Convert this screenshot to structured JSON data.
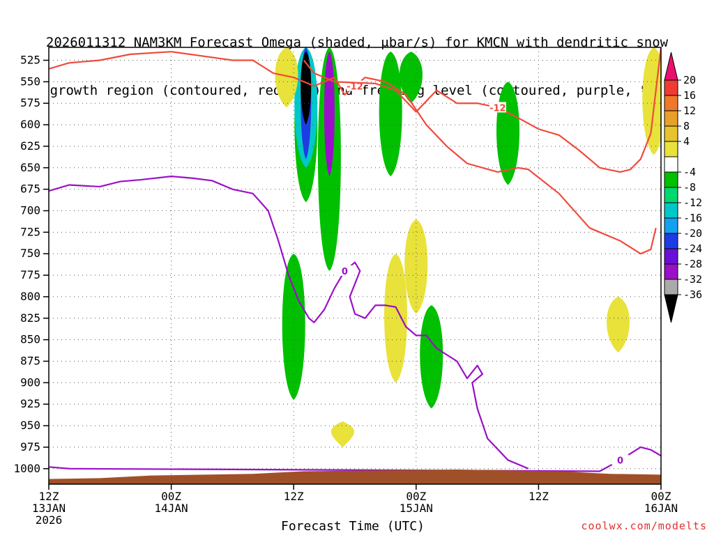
{
  "title_line1": "2026011312 NAM3KM Forecast Omega (shaded, μbar/s) for KMCN with dendritic snow",
  "title_line2": "growth region (contoured, red, ºC) and freezing level (contoured, purple, ºC)",
  "credit": "coolwx.com/modelts",
  "chart_data": {
    "type": "time-height cross section",
    "xlabel": "Forecast Time (UTC)",
    "ylabel": "Pressure (mb)",
    "x_range_hours": [
      0,
      60
    ],
    "y_range_mb": [
      510,
      1018
    ],
    "y_ticks": [
      525,
      550,
      575,
      600,
      625,
      650,
      675,
      700,
      725,
      750,
      775,
      800,
      825,
      850,
      875,
      900,
      925,
      950,
      975,
      1000
    ],
    "x_ticks": [
      {
        "hour": 0,
        "lines": [
          "12Z",
          "13JAN",
          "2026"
        ]
      },
      {
        "hour": 12,
        "lines": [
          "00Z",
          "14JAN"
        ]
      },
      {
        "hour": 24,
        "lines": [
          "12Z"
        ]
      },
      {
        "hour": 36,
        "lines": [
          "00Z",
          "15JAN"
        ]
      },
      {
        "hour": 48,
        "lines": [
          "12Z"
        ]
      },
      {
        "hour": 60,
        "lines": [
          "00Z",
          "16JAN"
        ]
      }
    ],
    "colorbar": {
      "labels": [
        20,
        16,
        12,
        8,
        4,
        -4,
        -8,
        -12,
        -16,
        -20,
        -24,
        -28,
        -32,
        -36
      ],
      "colors": [
        "#e8116e",
        "#f03b32",
        "#f0782a",
        "#e7a02a",
        "#e7c32d",
        "#e8e23a",
        "#ffffff",
        "#00c000",
        "#00d870",
        "#00c8c8",
        "#14a0f0",
        "#1c3ce6",
        "#6a10d6",
        "#9a10c8",
        "#aaaaaa",
        "#000000"
      ]
    },
    "omega_regions": [
      {
        "value": -8,
        "color": "#00c000",
        "hour_center": 25.2,
        "p_top": 510,
        "p_bottom": 690
      },
      {
        "value": -16,
        "color": "#00c8c8",
        "hour_center": 25.2,
        "p_top": 510,
        "p_bottom": 650
      },
      {
        "value": -24,
        "color": "#1c3ce6",
        "hour_center": 25.2,
        "p_top": 510,
        "p_bottom": 640
      },
      {
        "value": -36,
        "color": "#000000",
        "hour_center": 25.2,
        "p_top": 515,
        "p_bottom": 600
      },
      {
        "value": -8,
        "color": "#00c000",
        "hour_center": 27.5,
        "p_top": 510,
        "p_bottom": 770
      },
      {
        "value": -28,
        "color": "#9a10c8",
        "hour_center": 27.5,
        "p_top": 515,
        "p_bottom": 660
      },
      {
        "value": -8,
        "color": "#00c000",
        "hour_center": 33.5,
        "p_top": 515,
        "p_bottom": 660
      },
      {
        "value": -8,
        "color": "#00c000",
        "hour_center": 35.5,
        "p_top": 515,
        "p_bottom": 575
      },
      {
        "value": -8,
        "color": "#00c000",
        "hour_center": 45.0,
        "p_top": 550,
        "p_bottom": 670
      },
      {
        "value": -8,
        "color": "#00c000",
        "hour_center": 24.0,
        "p_top": 750,
        "p_bottom": 920
      },
      {
        "value": -8,
        "color": "#00c000",
        "hour_center": 37.5,
        "p_top": 810,
        "p_bottom": 930
      },
      {
        "value": 4,
        "color": "#e8e23a",
        "hour_center": 23.3,
        "p_top": 510,
        "p_bottom": 580
      },
      {
        "value": 4,
        "color": "#e8e23a",
        "hour_center": 59.3,
        "p_top": 510,
        "p_bottom": 635
      },
      {
        "value": 4,
        "color": "#e8e23a",
        "hour_center": 34.0,
        "p_top": 750,
        "p_bottom": 900
      },
      {
        "value": 4,
        "color": "#e8e23a",
        "hour_center": 36.0,
        "p_top": 710,
        "p_bottom": 820
      },
      {
        "value": 4,
        "color": "#e8e23a",
        "hour_center": 55.8,
        "p_top": 800,
        "p_bottom": 865
      },
      {
        "value": 4,
        "color": "#e8e23a",
        "hour_center": 28.8,
        "p_top": 945,
        "p_bottom": 975
      }
    ],
    "contours": [
      {
        "name": "dgz -12C",
        "color": "#f04a3c",
        "label": "-12",
        "points": [
          [
            0,
            535
          ],
          [
            2,
            528
          ],
          [
            5,
            525
          ],
          [
            8,
            518
          ],
          [
            12,
            515
          ],
          [
            15,
            520
          ],
          [
            18,
            525
          ],
          [
            20,
            525
          ],
          [
            22,
            540
          ],
          [
            24,
            545
          ],
          [
            26,
            555
          ],
          [
            28,
            545
          ],
          [
            29,
            565
          ],
          [
            30,
            555
          ],
          [
            31,
            545
          ],
          [
            33,
            550
          ],
          [
            35,
            565
          ],
          [
            37,
            600
          ],
          [
            39,
            625
          ],
          [
            41,
            645
          ],
          [
            44,
            655
          ],
          [
            46,
            650
          ],
          [
            47,
            652
          ],
          [
            50,
            680
          ],
          [
            53,
            720
          ],
          [
            56,
            735
          ],
          [
            58,
            750
          ],
          [
            59,
            745
          ],
          [
            59.5,
            720
          ]
        ]
      },
      {
        "name": "dgz -12C upper",
        "color": "#f04a3c",
        "label": "-12",
        "points": [
          [
            25,
            525
          ],
          [
            26,
            540
          ],
          [
            28,
            550
          ],
          [
            32,
            552
          ],
          [
            34,
            560
          ],
          [
            36,
            585
          ],
          [
            38,
            560
          ],
          [
            40,
            575
          ],
          [
            42,
            575
          ],
          [
            44,
            580
          ],
          [
            46,
            592
          ],
          [
            48,
            605
          ],
          [
            50,
            612
          ],
          [
            52,
            630
          ],
          [
            54,
            650
          ],
          [
            56,
            655
          ],
          [
            57,
            652
          ],
          [
            58,
            640
          ],
          [
            59,
            610
          ],
          [
            59.5,
            560
          ],
          [
            60,
            510
          ]
        ]
      },
      {
        "name": "freezing level 0C",
        "color": "#9a10c8",
        "label": "0",
        "points": [
          [
            0,
            677
          ],
          [
            2,
            670
          ],
          [
            5,
            672
          ],
          [
            7,
            666
          ],
          [
            9,
            664
          ],
          [
            12,
            660
          ],
          [
            14,
            662
          ],
          [
            16,
            665
          ],
          [
            18,
            675
          ],
          [
            20,
            680
          ],
          [
            21.5,
            700
          ],
          [
            22.5,
            735
          ],
          [
            23.5,
            775
          ],
          [
            24.5,
            805
          ],
          [
            25.5,
            825
          ],
          [
            26,
            830
          ],
          [
            27,
            815
          ],
          [
            28,
            790
          ],
          [
            29,
            770
          ],
          [
            30,
            760
          ],
          [
            30.5,
            770
          ],
          [
            30,
            785
          ],
          [
            29.5,
            800
          ],
          [
            30,
            820
          ],
          [
            31,
            825
          ],
          [
            32,
            810
          ],
          [
            33,
            810
          ],
          [
            34,
            812
          ],
          [
            35,
            835
          ],
          [
            36,
            845
          ],
          [
            37,
            845
          ],
          [
            38,
            860
          ],
          [
            40,
            875
          ],
          [
            41,
            895
          ],
          [
            42,
            880
          ],
          [
            42.5,
            890
          ],
          [
            41.5,
            900
          ],
          [
            42,
            930
          ],
          [
            43,
            965
          ],
          [
            45,
            990
          ],
          [
            47,
            1000
          ]
        ]
      },
      {
        "name": "freezing level 0C sfc",
        "color": "#9a10c8",
        "label": "0",
        "points": [
          [
            0,
            998
          ],
          [
            2,
            1000
          ],
          [
            54,
            1003
          ],
          [
            56,
            990
          ],
          [
            58,
            975
          ],
          [
            59,
            978
          ],
          [
            60,
            985
          ]
        ]
      }
    ],
    "terrain": {
      "color": "#a05028",
      "points": [
        [
          0,
          1012
        ],
        [
          5,
          1011
        ],
        [
          10,
          1008
        ],
        [
          20,
          1006
        ],
        [
          25,
          1003
        ],
        [
          40,
          1001
        ],
        [
          50,
          1003
        ],
        [
          55,
          1006
        ],
        [
          60,
          1007
        ]
      ]
    }
  }
}
